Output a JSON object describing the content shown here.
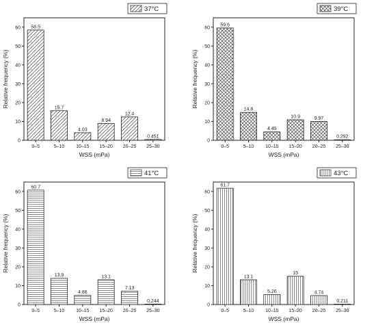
{
  "chart_data": [
    {
      "type": "bar",
      "legend": "37°C",
      "legend_placement": "top-right",
      "pattern": "diagonal",
      "categories": [
        "0–5",
        "5–10",
        "10–15",
        "15–20",
        "20–25",
        "25–30"
      ],
      "values": [
        58.5,
        15.7,
        4.03,
        8.94,
        12.4,
        0.451
      ],
      "value_labels": [
        "58.5",
        "15.7",
        "4.03",
        "8.94",
        "12.4",
        "0.451"
      ],
      "xlabel": "WSS (mPa)",
      "ylabel": "Relative frequency (%)",
      "ylim": [
        0,
        65
      ],
      "yticks": [
        "0",
        "10",
        "20",
        "30",
        "40",
        "50",
        "60"
      ],
      "grid": false
    },
    {
      "type": "bar",
      "legend": "39°C",
      "legend_placement": "top-right",
      "pattern": "crosshatch",
      "categories": [
        "0–5",
        "5–10",
        "10–15",
        "15–20",
        "20–25",
        "25–30"
      ],
      "values": [
        59.6,
        14.8,
        4.45,
        10.9,
        9.97,
        0.292
      ],
      "value_labels": [
        "59.6",
        "14.8",
        "4.45",
        "10.9",
        "9.97",
        "0.292"
      ],
      "xlabel": "WSS (mPa)",
      "ylabel": "Relative frequency (%)",
      "ylim": [
        0,
        65
      ],
      "yticks": [
        "0",
        "10",
        "20",
        "30",
        "40",
        "50",
        "60"
      ],
      "grid": false
    },
    {
      "type": "bar",
      "legend": "41°C",
      "legend_placement": "top-right",
      "pattern": "horizontal",
      "categories": [
        "0–5",
        "5–10",
        "10–15",
        "15–20",
        "20–25",
        "25–30"
      ],
      "values": [
        60.7,
        13.9,
        4.86,
        13.1,
        7.13,
        0.244
      ],
      "value_labels": [
        "60.7",
        "13.9",
        "4.86",
        "13.1",
        "7.13",
        "0.244"
      ],
      "xlabel": "WSS (mPa)",
      "ylabel": "Relative frequency (%)",
      "ylim": [
        0,
        65
      ],
      "yticks": [
        "0",
        "10",
        "20",
        "30",
        "40",
        "50",
        "60"
      ],
      "grid": false
    },
    {
      "type": "bar",
      "legend": "43°C",
      "legend_placement": "top-right",
      "pattern": "vertical",
      "categories": [
        "0–5",
        "5–10",
        "10–15",
        "15–20",
        "20–25",
        "25–30"
      ],
      "values": [
        61.7,
        13.1,
        5.26,
        15,
        4.74,
        0.211
      ],
      "value_labels": [
        "61.7",
        "13.1",
        "5.26",
        "15",
        "4.74",
        "0.211"
      ],
      "xlabel": "WSS (mPa)",
      "ylabel": "Relative frequency (%)",
      "ylim": [
        0,
        65
      ],
      "yticks": [
        "0",
        "10",
        "20",
        "30",
        "40",
        "50",
        "60"
      ],
      "grid": false
    }
  ]
}
